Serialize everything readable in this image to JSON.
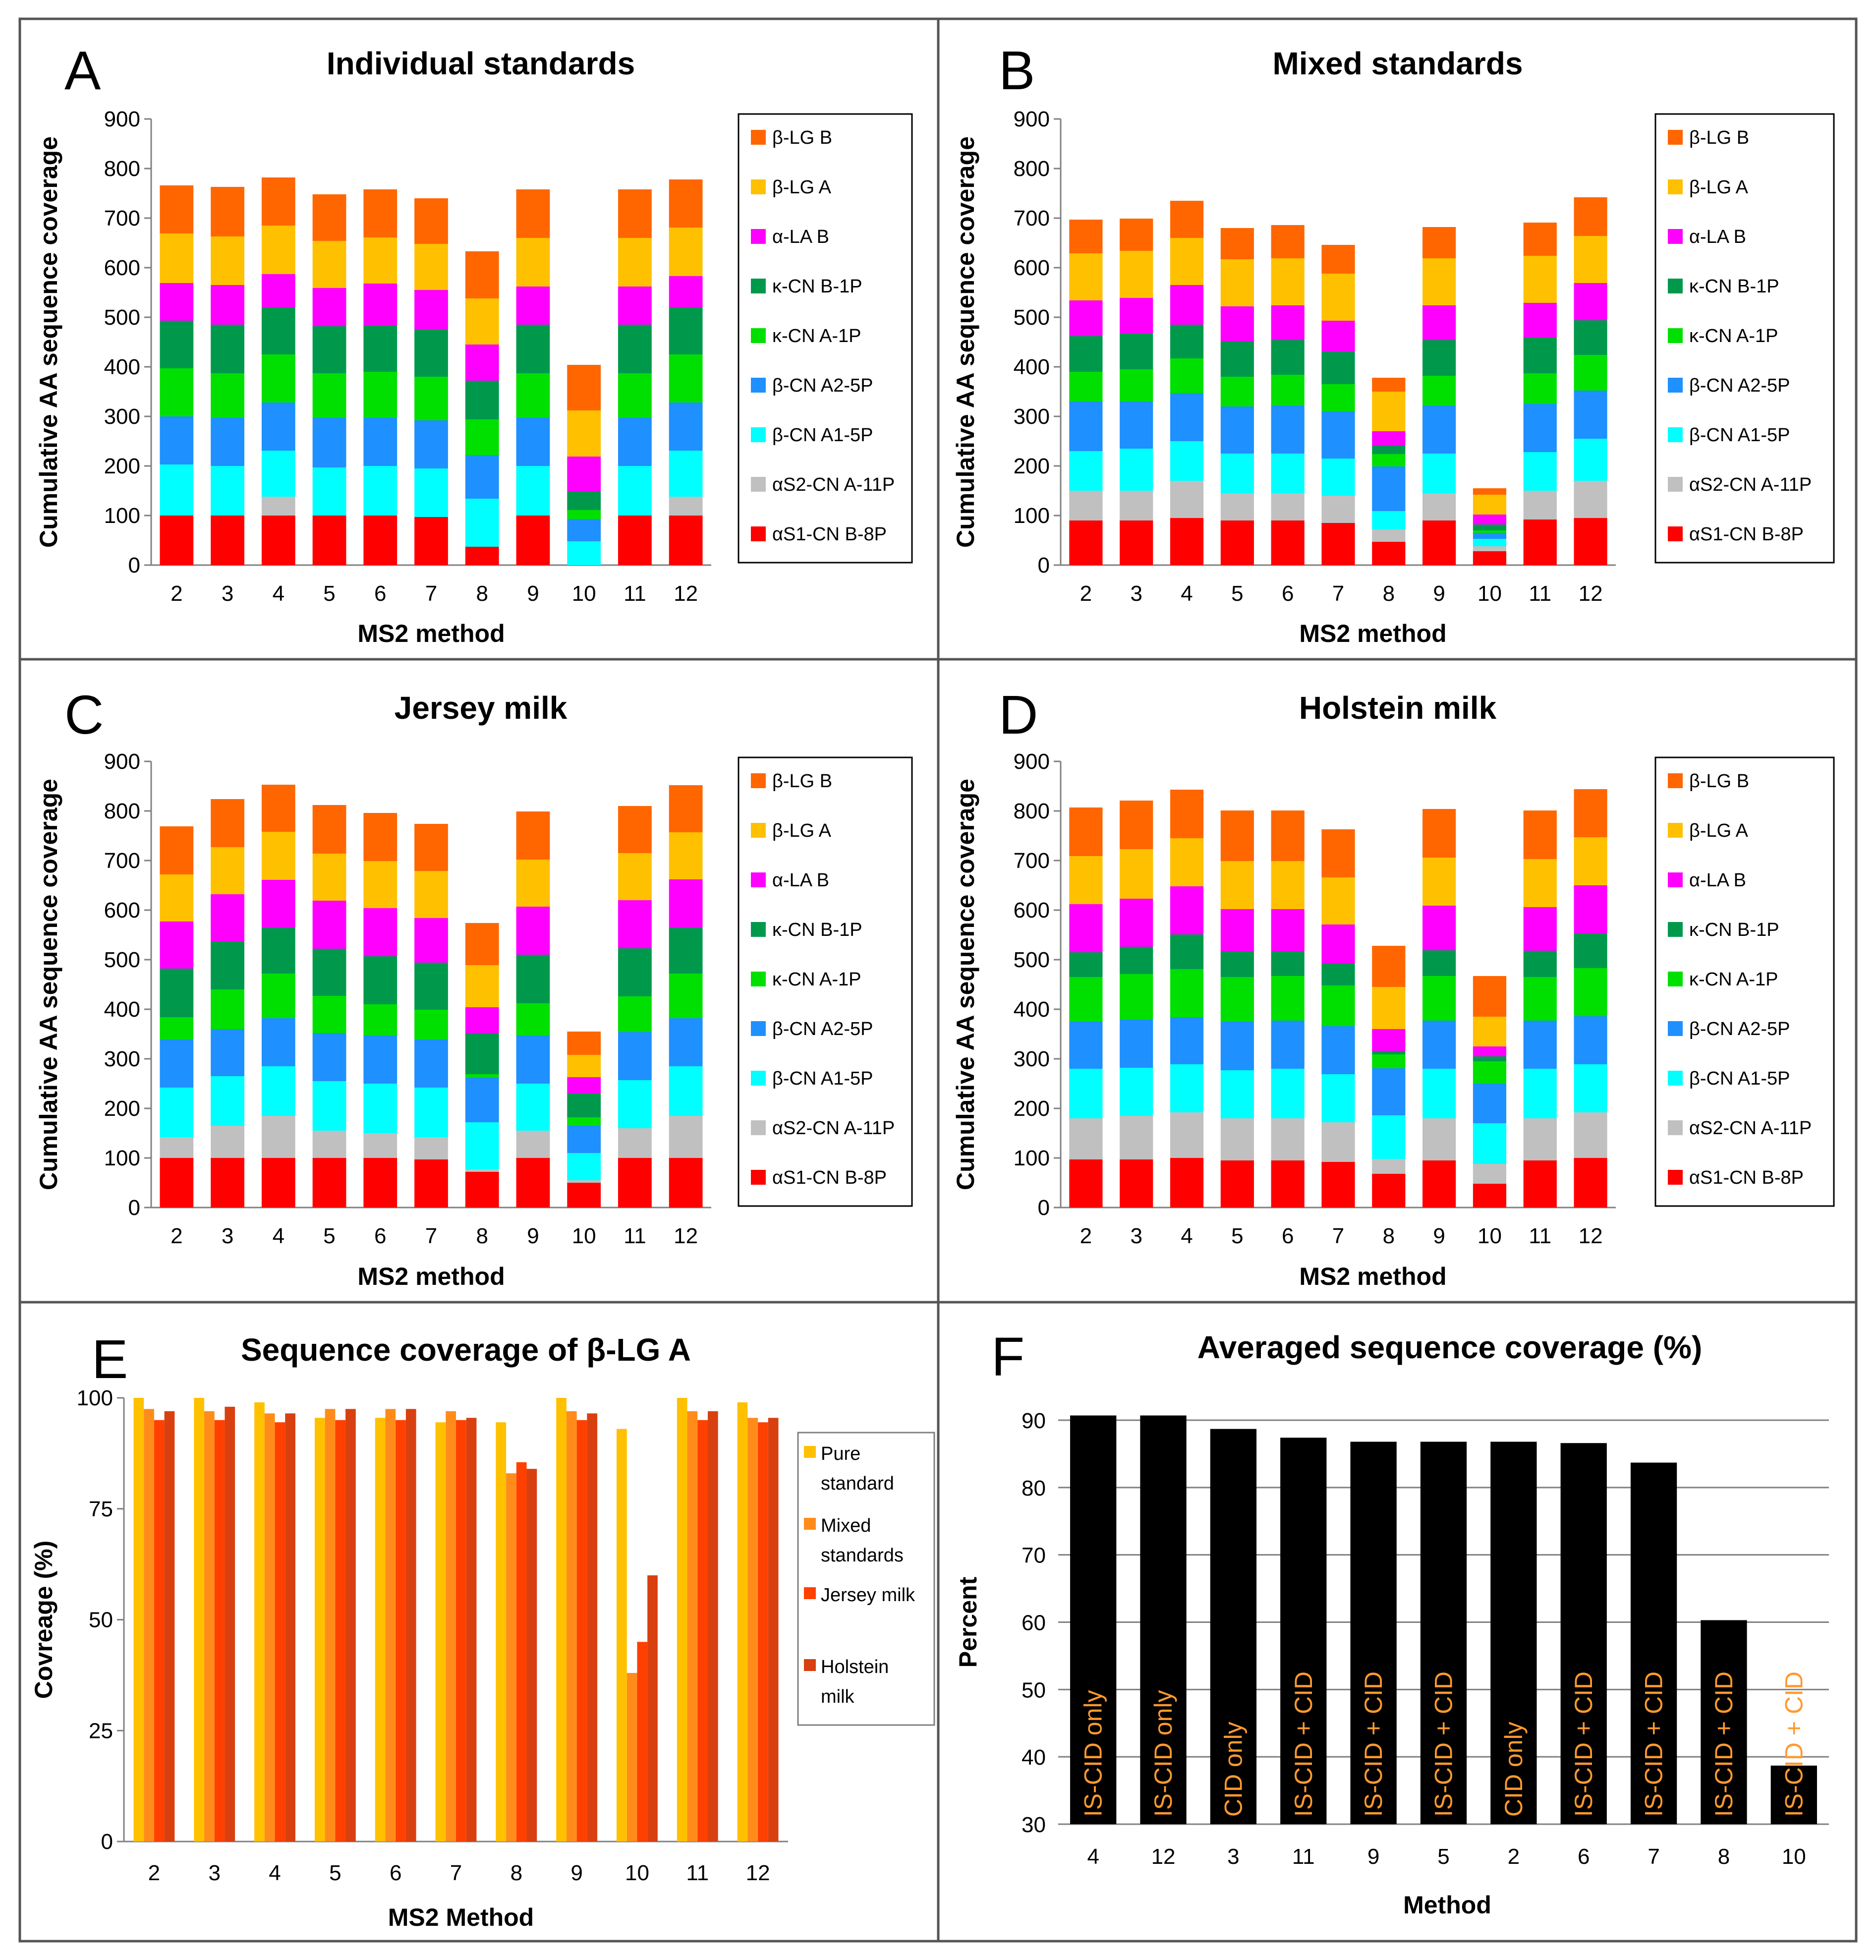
{
  "colors": {
    "aS1": "#ff0000",
    "aS2": "#c0c0c0",
    "bA1": "#00ffff",
    "bA2": "#1e90ff",
    "kA": "#00e000",
    "kB": "#00994c",
    "aLA": "#ff00ff",
    "bLGA": "#ffc000",
    "bLGB": "#ff6600",
    "pure": "#ffc000",
    "mixed": "#ff8c1a",
    "jersey": "#ff4000",
    "holstein": "#d84010",
    "black": "#000000",
    "orangeText": "#ff9a2e"
  },
  "chart_data": [
    {
      "id": "A",
      "letter": "A",
      "type": "bar",
      "stacked": true,
      "title": "Individual standards",
      "xlabel": "MS2 method",
      "ylabel": "Cumulative AA sequence coverage",
      "ylim": [
        0,
        900
      ],
      "yticks": [
        "0",
        "100",
        "200",
        "300",
        "400",
        "500",
        "600",
        "700",
        "800",
        "900"
      ],
      "categories": [
        "2",
        "3",
        "4",
        "5",
        "6",
        "7",
        "8",
        "9",
        "10",
        "11",
        "12"
      ],
      "legend": [
        "β-LG B",
        "β-LG A",
        "α-LA B",
        "κ-CN B-1P",
        "κ-CN A-1P",
        "β-CN A2-5P",
        "β-CN A1-5P",
        "αS2-CN A-11P",
        "αS1-CN B-8P"
      ],
      "series": [
        {
          "name": "αS1-CN B-8P",
          "color": "aS1",
          "values": [
            100,
            100,
            100,
            100,
            100,
            97,
            37,
            100,
            0,
            100,
            100
          ]
        },
        {
          "name": "αS2-CN A-11P",
          "color": "aS2",
          "values": [
            0,
            0,
            38,
            0,
            0,
            0,
            0,
            0,
            0,
            0,
            38
          ]
        },
        {
          "name": "β-CN A1-5P",
          "color": "bA1",
          "values": [
            103,
            100,
            93,
            97,
            100,
            98,
            97,
            100,
            48,
            100,
            93
          ]
        },
        {
          "name": "β-CN A2-5P",
          "color": "bA2",
          "values": [
            97,
            97,
            97,
            100,
            97,
            97,
            88,
            97,
            45,
            97,
            97
          ]
        },
        {
          "name": "κ-CN A-1P",
          "color": "kA",
          "values": [
            97,
            90,
            97,
            90,
            93,
            88,
            72,
            90,
            18,
            90,
            97
          ]
        },
        {
          "name": "κ-CN B-1P",
          "color": "kB",
          "values": [
            96,
            98,
            95,
            95,
            93,
            95,
            78,
            98,
            38,
            98,
            95
          ]
        },
        {
          "name": "α-LA B",
          "color": "aLA",
          "values": [
            76,
            80,
            67,
            77,
            85,
            80,
            73,
            77,
            70,
            77,
            63
          ]
        },
        {
          "name": "β-LG A",
          "color": "bLGA",
          "values": [
            100,
            98,
            98,
            95,
            93,
            93,
            93,
            98,
            93,
            98,
            98
          ]
        },
        {
          "name": "β-LG B",
          "color": "bLGB",
          "values": [
            97,
            100,
            97,
            94,
            97,
            92,
            95,
            98,
            92,
            98,
            97
          ]
        }
      ]
    },
    {
      "id": "B",
      "letter": "B",
      "type": "bar",
      "stacked": true,
      "title": "Mixed standards",
      "xlabel": "MS2 method",
      "ylabel": "Cumulative AA sequence coverage",
      "ylim": [
        0,
        900
      ],
      "yticks": [
        "0",
        "100",
        "200",
        "300",
        "400",
        "500",
        "600",
        "700",
        "800",
        "900"
      ],
      "categories": [
        "2",
        "3",
        "4",
        "5",
        "6",
        "7",
        "8",
        "9",
        "10",
        "11",
        "12"
      ],
      "legend": [
        "β-LG B",
        "β-LG A",
        "α-LA B",
        "κ-CN B-1P",
        "κ-CN A-1P",
        "β-CN A2-5P",
        "β-CN A1-5P",
        "αS2-CN A-11P",
        "αS1-CN B-8P"
      ],
      "series": [
        {
          "name": "αS1-CN B-8P",
          "color": "aS1",
          "values": [
            90,
            90,
            95,
            90,
            90,
            85,
            47,
            90,
            28,
            92,
            95
          ]
        },
        {
          "name": "αS2-CN A-11P",
          "color": "aS2",
          "values": [
            60,
            60,
            75,
            55,
            55,
            55,
            25,
            55,
            10,
            58,
            75
          ]
        },
        {
          "name": "β-CN A1-5P",
          "color": "bA1",
          "values": [
            80,
            85,
            80,
            80,
            80,
            75,
            37,
            80,
            15,
            78,
            85
          ]
        },
        {
          "name": "β-CN A2-5P",
          "color": "bA2",
          "values": [
            100,
            95,
            97,
            95,
            97,
            95,
            90,
            97,
            12,
            97,
            97
          ]
        },
        {
          "name": "κ-CN A-1P",
          "color": "kA",
          "values": [
            60,
            65,
            70,
            60,
            62,
            55,
            25,
            60,
            5,
            62,
            72
          ]
        },
        {
          "name": "κ-CN B-1P",
          "color": "kB",
          "values": [
            72,
            72,
            68,
            72,
            70,
            65,
            18,
            72,
            12,
            72,
            70
          ]
        },
        {
          "name": "α-LA B",
          "color": "aLA",
          "values": [
            72,
            72,
            80,
            70,
            70,
            63,
            28,
            70,
            20,
            70,
            75
          ]
        },
        {
          "name": "β-LG A",
          "color": "bLGA",
          "values": [
            95,
            95,
            95,
            95,
            95,
            95,
            80,
            95,
            40,
            95,
            95
          ]
        },
        {
          "name": "β-LG B",
          "color": "bLGB",
          "values": [
            68,
            65,
            75,
            63,
            67,
            58,
            28,
            63,
            13,
            67,
            78
          ]
        }
      ]
    },
    {
      "id": "C",
      "letter": "C",
      "type": "bar",
      "stacked": true,
      "title": "Jersey milk",
      "xlabel": "MS2 method",
      "ylabel": "Cumulative AA sequence coverage",
      "ylim": [
        0,
        900
      ],
      "yticks": [
        "0",
        "100",
        "200",
        "300",
        "400",
        "500",
        "600",
        "700",
        "800",
        "900"
      ],
      "categories": [
        "2",
        "3",
        "4",
        "5",
        "6",
        "7",
        "8",
        "9",
        "10",
        "11",
        "12"
      ],
      "legend": [
        "β-LG B",
        "β-LG A",
        "α-LA B",
        "κ-CN B-1P",
        "κ-CN A-1P",
        "β-CN A2-5P",
        "β-CN A1-5P",
        "αS2-CN A-11P",
        "αS1-CN B-8P"
      ],
      "series": [
        {
          "name": "αS1-CN B-8P",
          "color": "aS1",
          "values": [
            100,
            100,
            100,
            100,
            100,
            97,
            72,
            100,
            50,
            100,
            100
          ]
        },
        {
          "name": "αS2-CN A-11P",
          "color": "aS2",
          "values": [
            42,
            65,
            85,
            55,
            50,
            45,
            5,
            55,
            5,
            60,
            85
          ]
        },
        {
          "name": "β-CN A1-5P",
          "color": "bA1",
          "values": [
            100,
            100,
            100,
            100,
            100,
            100,
            95,
            95,
            55,
            97,
            100
          ]
        },
        {
          "name": "β-CN A2-5P",
          "color": "bA2",
          "values": [
            97,
            95,
            97,
            97,
            97,
            97,
            90,
            97,
            55,
            97,
            97
          ]
        },
        {
          "name": "κ-CN A-1P",
          "color": "kA",
          "values": [
            45,
            80,
            90,
            75,
            63,
            60,
            7,
            65,
            17,
            72,
            90
          ]
        },
        {
          "name": "κ-CN B-1P",
          "color": "kB",
          "values": [
            98,
            97,
            92,
            95,
            97,
            95,
            83,
            98,
            48,
            97,
            92
          ]
        },
        {
          "name": "α-LA B",
          "color": "aLA",
          "values": [
            95,
            95,
            97,
            97,
            97,
            90,
            52,
            97,
            33,
            97,
            98
          ]
        },
        {
          "name": "β-LG A",
          "color": "bLGA",
          "values": [
            95,
            95,
            97,
            95,
            95,
            95,
            85,
            95,
            45,
            95,
            95
          ]
        },
        {
          "name": "β-LG B",
          "color": "bLGB",
          "values": [
            97,
            97,
            95,
            98,
            97,
            95,
            85,
            97,
            47,
            95,
            95
          ]
        }
      ]
    },
    {
      "id": "D",
      "letter": "D",
      "type": "bar",
      "stacked": true,
      "title": "Holstein milk",
      "xlabel": "MS2 method",
      "ylabel": "Cumulative AA sequence coverage",
      "ylim": [
        0,
        900
      ],
      "yticks": [
        "0",
        "100",
        "200",
        "300",
        "400",
        "500",
        "600",
        "700",
        "800",
        "900"
      ],
      "categories": [
        "2",
        "3",
        "4",
        "5",
        "6",
        "7",
        "8",
        "9",
        "10",
        "11",
        "12"
      ],
      "legend": [
        "β-LG B",
        "β-LG A",
        "α-LA B",
        "κ-CN B-1P",
        "κ-CN A-1P",
        "β-CN A2-5P",
        "β-CN A1-5P",
        "αS2-CN A-11P",
        "αS1-CN B-8P"
      ],
      "series": [
        {
          "name": "αS1-CN B-8P",
          "color": "aS1",
          "values": [
            97,
            97,
            100,
            95,
            95,
            92,
            68,
            95,
            48,
            95,
            100
          ]
        },
        {
          "name": "αS2-CN A-11P",
          "color": "aS2",
          "values": [
            83,
            88,
            92,
            85,
            85,
            80,
            30,
            85,
            40,
            85,
            92
          ]
        },
        {
          "name": "β-CN A1-5P",
          "color": "bA1",
          "values": [
            100,
            97,
            97,
            97,
            100,
            97,
            88,
            100,
            82,
            100,
            97
          ]
        },
        {
          "name": "β-CN A2-5P",
          "color": "bA2",
          "values": [
            95,
            97,
            95,
            98,
            97,
            97,
            95,
            97,
            80,
            97,
            97
          ]
        },
        {
          "name": "κ-CN A-1P",
          "color": "kA",
          "values": [
            90,
            92,
            97,
            90,
            90,
            82,
            28,
            90,
            45,
            88,
            97
          ]
        },
        {
          "name": "κ-CN B-1P",
          "color": "kB",
          "values": [
            50,
            55,
            70,
            52,
            50,
            45,
            7,
            52,
            10,
            53,
            70
          ]
        },
        {
          "name": "α-LA B",
          "color": "aLA",
          "values": [
            97,
            97,
            97,
            85,
            85,
            78,
            44,
            90,
            20,
            88,
            97
          ]
        },
        {
          "name": "β-LG A",
          "color": "bLGA",
          "values": [
            97,
            100,
            97,
            97,
            97,
            95,
            85,
            97,
            60,
            97,
            97
          ]
        },
        {
          "name": "β-LG B",
          "color": "bLGB",
          "values": [
            98,
            98,
            98,
            102,
            102,
            97,
            83,
            98,
            82,
            98,
            97
          ]
        }
      ]
    },
    {
      "id": "E",
      "letter": "E",
      "type": "bar",
      "stacked": false,
      "title": "Sequence coverage of β-LG A",
      "xlabel": "MS2 Method",
      "ylabel": "Covreage (%)",
      "ylim": [
        0,
        100
      ],
      "yticks": [
        "0",
        "25",
        "50",
        "75",
        "100"
      ],
      "categories": [
        "2",
        "3",
        "4",
        "5",
        "6",
        "7",
        "8",
        "9",
        "10",
        "11",
        "12"
      ],
      "legend": [
        "Pure standard",
        "Mixed standards",
        "Jersey milk",
        "Holstein milk"
      ],
      "series": [
        {
          "name": "Pure standard",
          "color": "pure",
          "values": [
            100,
            100,
            99,
            95.5,
            95.5,
            94.5,
            94.5,
            100,
            93,
            100,
            99
          ]
        },
        {
          "name": "Mixed standards",
          "color": "mixed",
          "values": [
            97.5,
            97,
            96.5,
            97.5,
            97.5,
            97,
            83,
            97,
            38,
            97,
            95.5
          ]
        },
        {
          "name": "Jersey milk",
          "color": "jersey",
          "values": [
            95,
            95,
            94.5,
            95,
            95,
            95,
            85.5,
            95,
            45,
            95,
            94.5
          ]
        },
        {
          "name": "Holstein milk",
          "color": "holstein",
          "values": [
            97,
            98,
            96.5,
            97.5,
            97.5,
            95.5,
            84,
            96.5,
            60,
            97,
            95.5
          ]
        }
      ]
    },
    {
      "id": "F",
      "letter": "F",
      "type": "bar",
      "stacked": false,
      "title": "Averaged sequence coverage (%)",
      "xlabel": "Method",
      "ylabel": "Percent",
      "ylim": [
        30,
        90
      ],
      "yticks": [
        "30",
        "40",
        "50",
        "60",
        "70",
        "80",
        "90"
      ],
      "categories": [
        "4",
        "12",
        "3",
        "11",
        "9",
        "5",
        "2",
        "6",
        "7",
        "8",
        "10"
      ],
      "values": [
        90.7,
        90.7,
        88.7,
        87.4,
        86.8,
        86.8,
        86.8,
        86.6,
        83.7,
        60.3,
        38.7
      ],
      "bar_labels": [
        "IS-CID only",
        "IS-CID only",
        "CID only",
        "IS-CID + CID",
        "IS-CID + CID",
        "IS-CID + CID",
        "CID only",
        "IS-CID + CID",
        "IS-CID + CID",
        "IS-CID + CID",
        "IS-CID + CID"
      ]
    }
  ]
}
